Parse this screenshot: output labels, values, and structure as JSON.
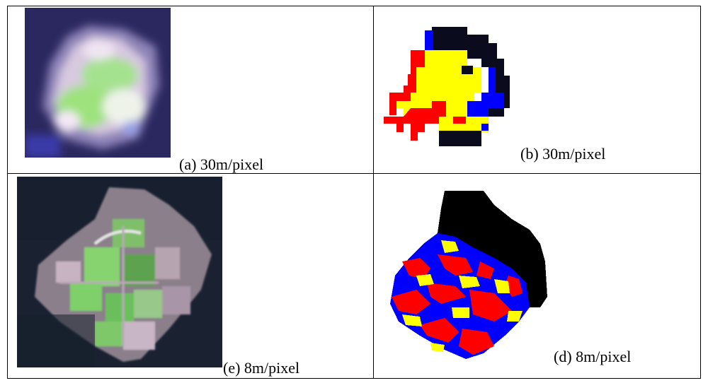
{
  "figure": {
    "panels": [
      {
        "id": "a",
        "caption": "(a) 30m/pixel",
        "kind": "satellite-image"
      },
      {
        "id": "b",
        "caption": "(b) 30m/pixel",
        "kind": "classification-map"
      },
      {
        "id": "e",
        "caption": "(e) 8m/pixel",
        "kind": "satellite-image"
      },
      {
        "id": "d",
        "caption": "(d) 8m/pixel",
        "kind": "classification-map"
      }
    ],
    "class_colors": [
      "#ff0000",
      "#ffff00",
      "#0000ff",
      "#000000"
    ]
  }
}
